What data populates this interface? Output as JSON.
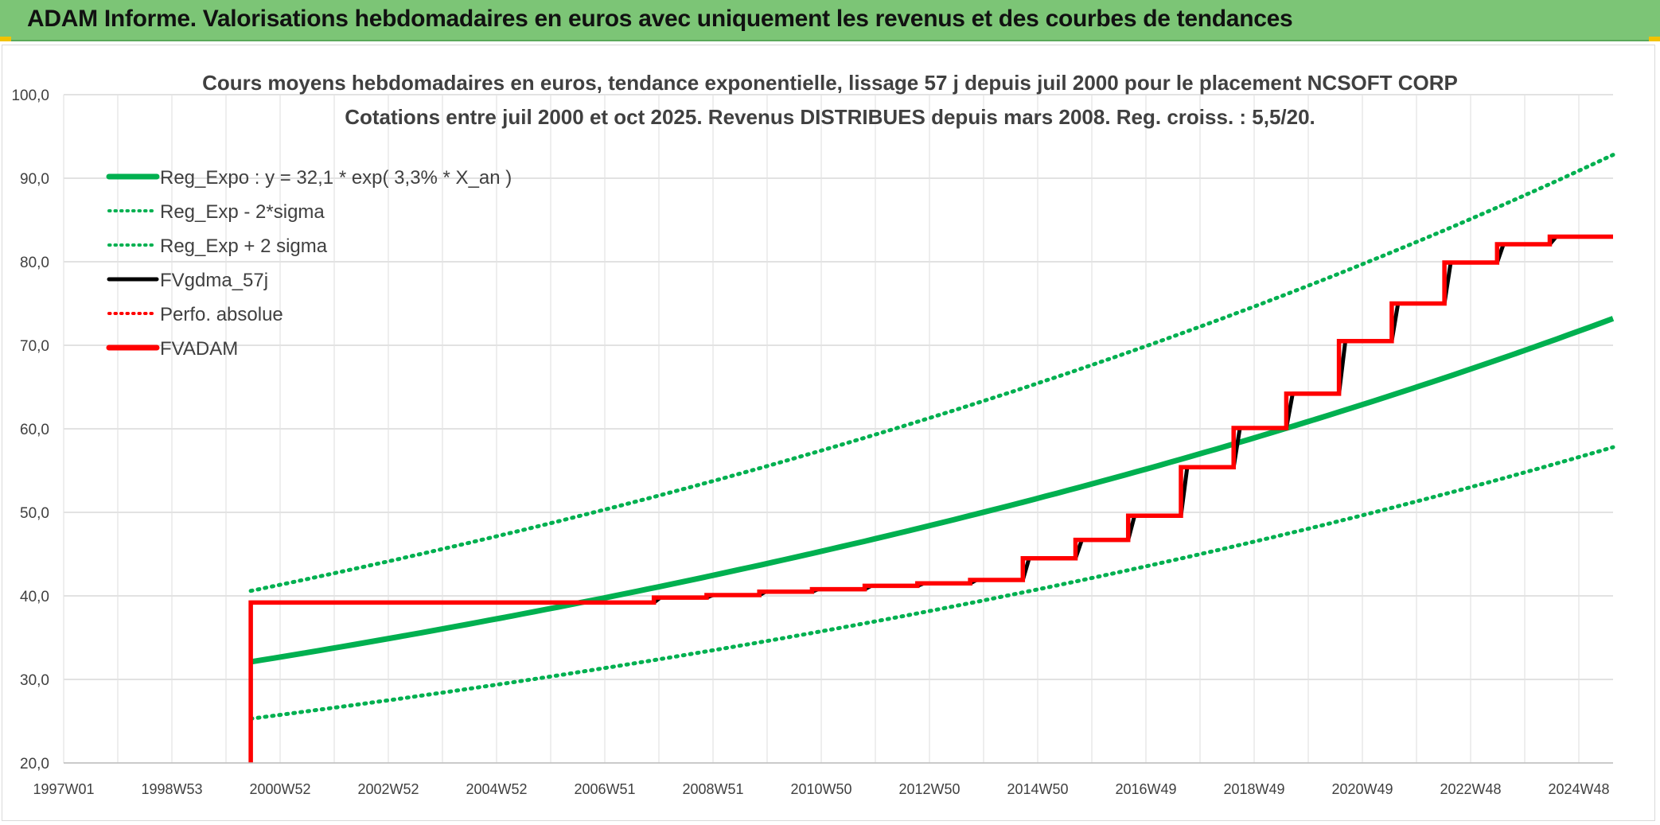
{
  "banner": {
    "title": "ADAM Informe. Valorisations hebdomadaires en euros avec uniquement les revenus et des courbes de tendances"
  },
  "colors": {
    "banner_bg": "#7cc576",
    "accent_marks": "#f2c200",
    "green": "#00b050",
    "red": "#ff0000",
    "black": "#000000",
    "grid": "#d9d9d9"
  },
  "chart_data": {
    "type": "line",
    "title_line1": "Cours moyens hebdomadaires en euros, tendance exponentielle, lissage 57 j depuis juil 2000 pour le placement NCSOFT CORP",
    "title_line2": "Cotations entre juil 2000 et oct 2025. Revenus DISTRIBUES depuis mars 2008. Reg. croiss. : 5,5/20.",
    "xlabel": "",
    "ylabel": "",
    "x_range_years": [
      1997.0,
      2026.4
    ],
    "ylim": [
      20,
      100
    ],
    "y_ticks": [
      "20,0",
      "30,0",
      "40,0",
      "50,0",
      "60,0",
      "70,0",
      "80,0",
      "90,0",
      "100,0"
    ],
    "x_tick_labels": [
      "1997W01",
      "1998W53",
      "2000W52",
      "2002W52",
      "2004W52",
      "2006W51",
      "2008W51",
      "2010W50",
      "2012W50",
      "2014W50",
      "2016W49",
      "2018W49",
      "2020W49",
      "2022W48",
      "2024W48"
    ],
    "grid": true,
    "legend_position": "top-left",
    "legend": [
      {
        "label": "Reg_Expo : y = 32,1 * exp( 3,3% *  X_an )",
        "color": "#00b050",
        "style": "solid-thick"
      },
      {
        "label": "Reg_Exp - 2*sigma",
        "color": "#00b050",
        "style": "dotted"
      },
      {
        "label": "Reg_Exp + 2 sigma",
        "color": "#00b050",
        "style": "dotted"
      },
      {
        "label": "FVgdma_57j",
        "color": "#000000",
        "style": "solid"
      },
      {
        "label": "Perfo. absolue",
        "color": "#ff0000",
        "style": "dotted"
      },
      {
        "label": "FVADAM",
        "color": "#ff0000",
        "style": "solid-thick"
      }
    ],
    "regression": {
      "start_year": 2000.55,
      "end_year": 2026.4,
      "points": [
        [
          2000.55,
          32.1
        ],
        [
          2026.4,
          73.2
        ]
      ]
    },
    "regression_minus_2sigma": {
      "points": [
        [
          2000.55,
          25.3
        ],
        [
          2026.4,
          57.8
        ]
      ]
    },
    "regression_plus_2sigma": {
      "points": [
        [
          2000.55,
          40.6
        ],
        [
          2026.4,
          92.8
        ]
      ]
    },
    "fvadam_steps": [
      [
        2000.55,
        20.0
      ],
      [
        2000.55,
        39.2
      ],
      [
        2008.2,
        39.2
      ],
      [
        2008.2,
        39.8
      ],
      [
        2009.2,
        39.8
      ],
      [
        2009.2,
        40.1
      ],
      [
        2010.2,
        40.1
      ],
      [
        2010.2,
        40.5
      ],
      [
        2011.2,
        40.5
      ],
      [
        2011.2,
        40.8
      ],
      [
        2012.2,
        40.8
      ],
      [
        2012.2,
        41.2
      ],
      [
        2013.2,
        41.2
      ],
      [
        2013.2,
        41.5
      ],
      [
        2014.2,
        41.5
      ],
      [
        2014.2,
        41.9
      ],
      [
        2015.2,
        41.9
      ],
      [
        2015.2,
        44.5
      ],
      [
        2016.2,
        44.5
      ],
      [
        2016.2,
        46.7
      ],
      [
        2017.2,
        46.7
      ],
      [
        2017.2,
        49.6
      ],
      [
        2018.2,
        49.6
      ],
      [
        2018.2,
        55.4
      ],
      [
        2019.2,
        55.4
      ],
      [
        2019.2,
        60.1
      ],
      [
        2020.2,
        60.1
      ],
      [
        2020.2,
        64.2
      ],
      [
        2021.2,
        64.2
      ],
      [
        2021.2,
        70.5
      ],
      [
        2022.2,
        70.5
      ],
      [
        2022.2,
        75.0
      ],
      [
        2023.2,
        75.0
      ],
      [
        2023.2,
        79.9
      ],
      [
        2024.2,
        79.9
      ],
      [
        2024.2,
        82.1
      ],
      [
        2025.2,
        82.1
      ],
      [
        2025.2,
        83.0
      ],
      [
        2026.4,
        83.0
      ]
    ]
  }
}
